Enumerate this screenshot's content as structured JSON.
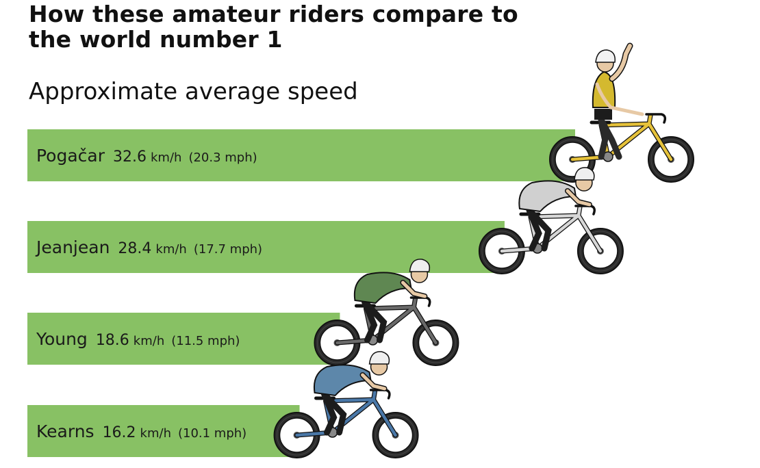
{
  "chart_data": {
    "type": "bar",
    "orientation": "horizontal",
    "title": "How these amateur riders compare to the world number 1",
    "subtitle": "Approximate average speed",
    "categories": [
      "Pogačar",
      "Jeanjean",
      "Young",
      "Kearns"
    ],
    "values": [
      32.6,
      28.4,
      18.6,
      16.2
    ],
    "units": "km/h",
    "values_mph": [
      20.3,
      17.7,
      11.5,
      10.1
    ],
    "unit_labels": [
      "km/h",
      "km/h",
      "km/h",
      "km/h"
    ],
    "mph_labels": [
      "(20.3 mph)",
      "(17.7 mph)",
      "(11.5 mph)",
      "(10.1 mph)"
    ],
    "xlim": [
      0,
      32.6
    ],
    "grid": false,
    "legend": "none",
    "bar_color": "#88c164",
    "jersey_colors": [
      "#d4b92f",
      "#d0d0d0",
      "#5f8752",
      "#5d87aa"
    ],
    "bike_colors": [
      "#e6c23a",
      "#d7d7d7",
      "#6a6a6a",
      "#4a78a8"
    ],
    "icons": [
      "cyclist-celebrating-icon",
      "cyclist-icon",
      "cyclist-icon",
      "cyclist-icon"
    ]
  }
}
